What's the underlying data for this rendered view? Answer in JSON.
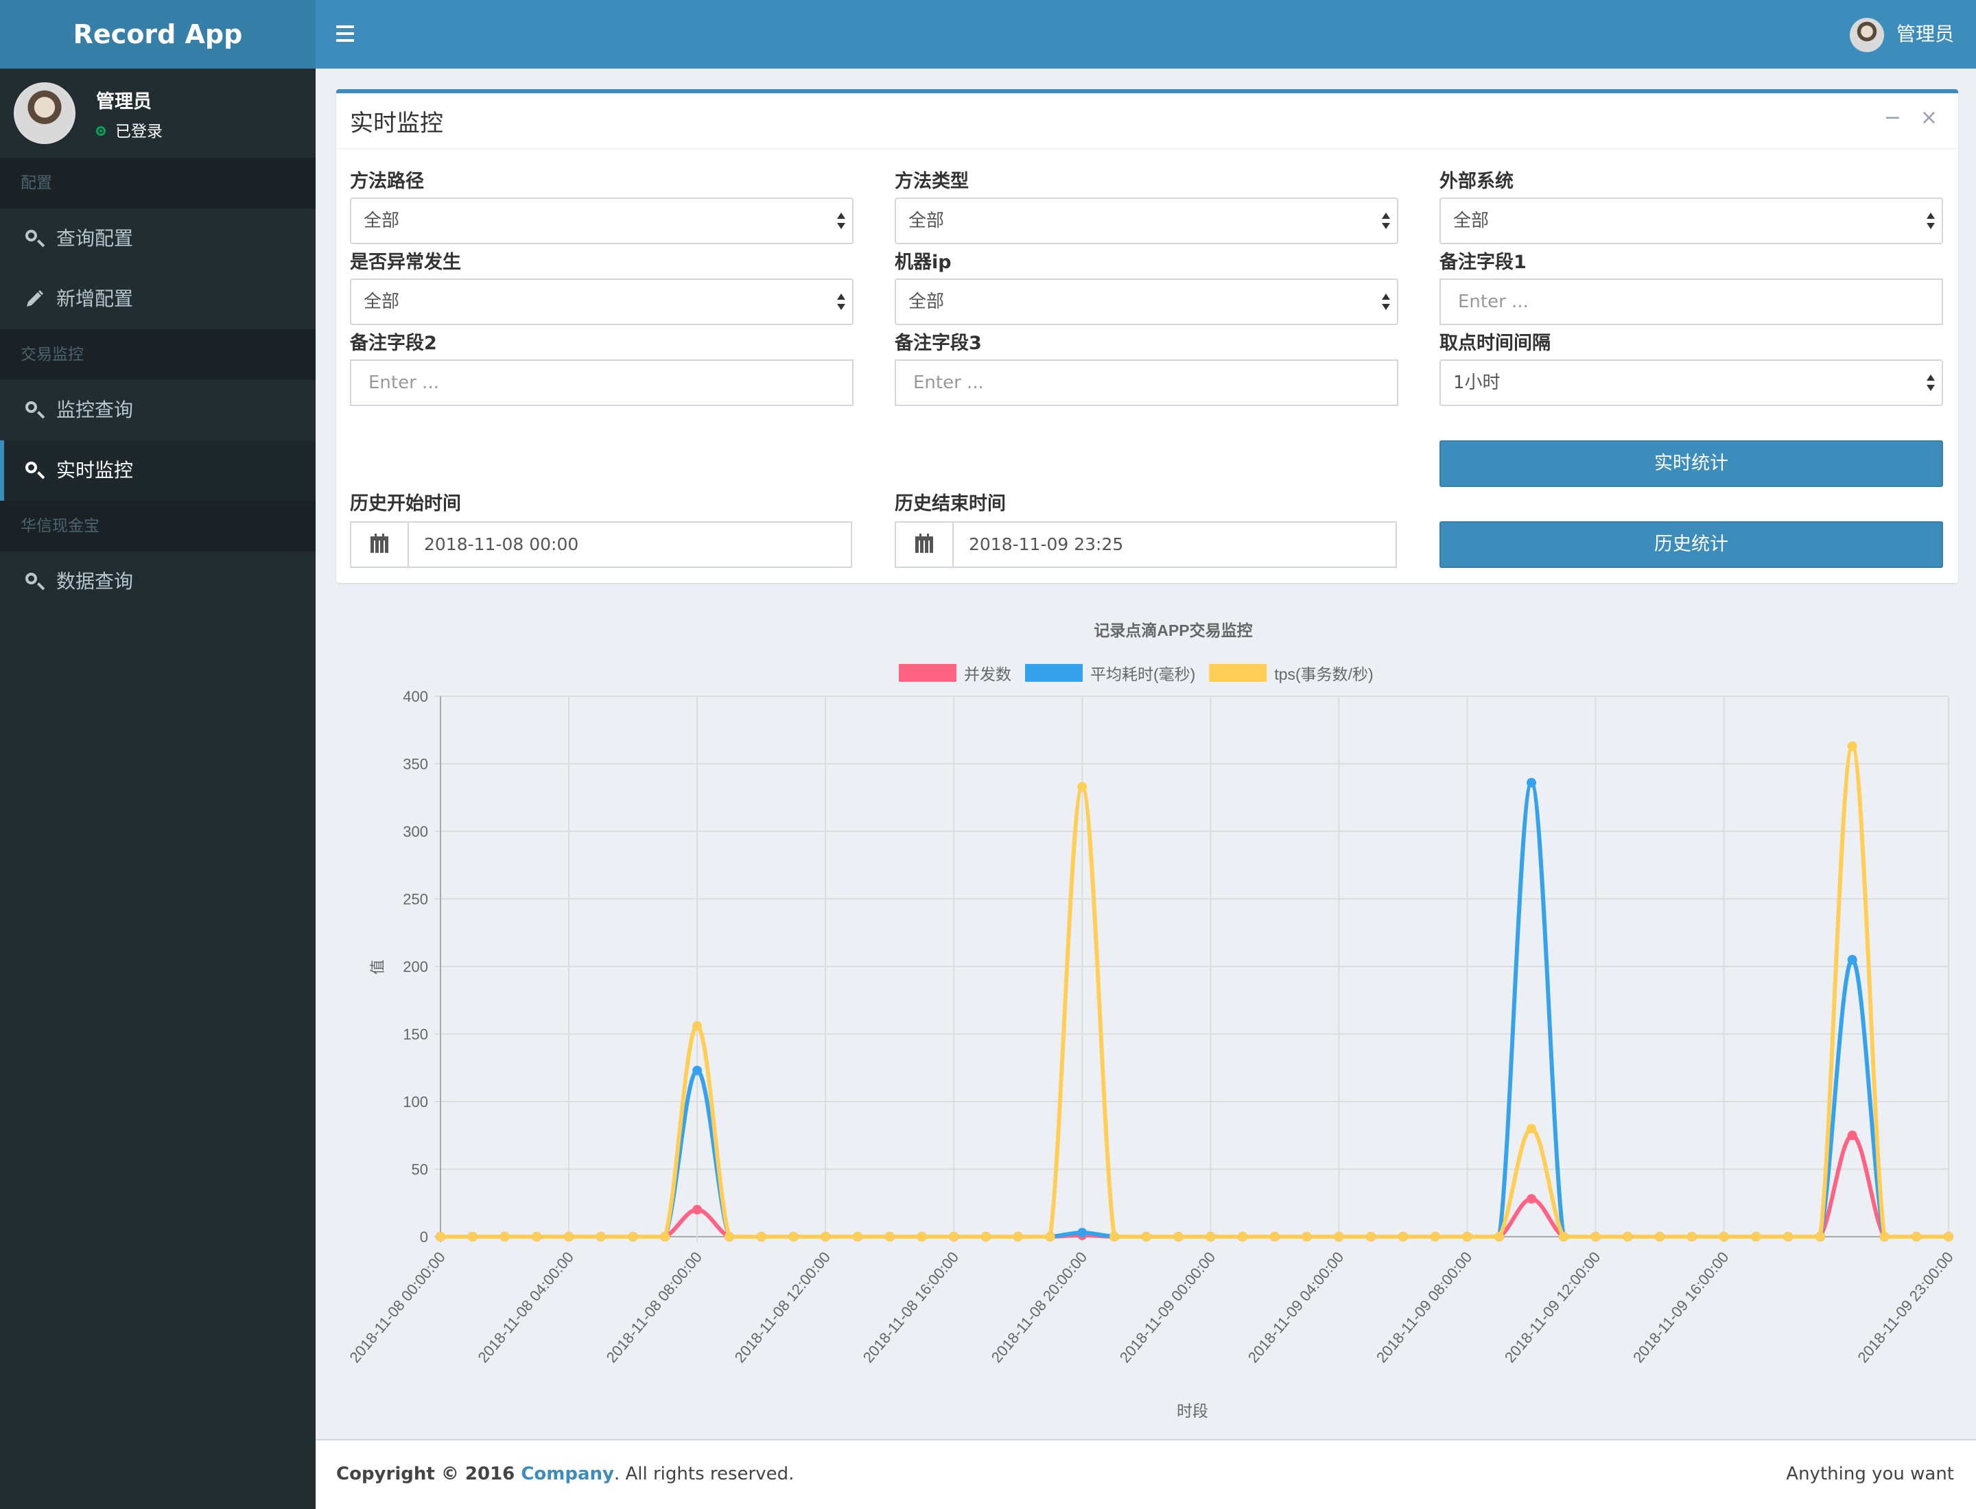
{
  "app": {
    "title": "Record App"
  },
  "user": {
    "name": "管理员",
    "status": "已登录"
  },
  "sidebar": {
    "sections": [
      {
        "header": "配置",
        "items": [
          {
            "label": "查询配置",
            "icon": "search-icon"
          },
          {
            "label": "新增配置",
            "icon": "pencil-icon"
          }
        ]
      },
      {
        "header": "交易监控",
        "items": [
          {
            "label": "监控查询",
            "icon": "search-icon"
          },
          {
            "label": "实时监控",
            "icon": "search-icon",
            "active": true
          }
        ]
      },
      {
        "header": "华信现金宝",
        "items": [
          {
            "label": "数据查询",
            "icon": "search-icon"
          }
        ]
      }
    ]
  },
  "navbar": {
    "user_name": "管理员"
  },
  "box": {
    "title": "实时监控",
    "fields": {
      "method_path": {
        "label": "方法路径",
        "value": "全部"
      },
      "method_type": {
        "label": "方法类型",
        "value": "全部"
      },
      "external_system": {
        "label": "外部系统",
        "value": "全部"
      },
      "exception": {
        "label": "是否异常发生",
        "value": "全部"
      },
      "machine_ip": {
        "label": "机器ip",
        "value": "全部"
      },
      "remark1": {
        "label": "备注字段1",
        "placeholder": "Enter ..."
      },
      "remark2": {
        "label": "备注字段2",
        "placeholder": "Enter ..."
      },
      "remark3": {
        "label": "备注字段3",
        "placeholder": "Enter ..."
      },
      "interval": {
        "label": "取点时间间隔",
        "value": "1小时"
      },
      "start_time": {
        "label": "历史开始时间",
        "value": "2018-11-08 00:00"
      },
      "end_time": {
        "label": "历史结束时间",
        "value": "2018-11-09 23:25"
      }
    },
    "buttons": {
      "realtime": "实时统计",
      "history": "历史统计"
    }
  },
  "chart_data": {
    "type": "line",
    "title": "记录点滴APP交易监控",
    "xlabel": "时段",
    "ylabel": "值",
    "ylim": [
      0,
      400
    ],
    "yticks": [
      0,
      50,
      100,
      150,
      200,
      250,
      300,
      350,
      400
    ],
    "x_tick_labels": [
      "2018-11-08 00:00:00",
      "2018-11-08 04:00:00",
      "2018-11-08 08:00:00",
      "2018-11-08 12:00:00",
      "2018-11-08 16:00:00",
      "2018-11-08 20:00:00",
      "2018-11-09 00:00:00",
      "2018-11-09 04:00:00",
      "2018-11-09 08:00:00",
      "2018-11-09 12:00:00",
      "2018-11-09 16:00:00",
      "2018-11-09 23:00:00"
    ],
    "grid": true,
    "legend": "top-center",
    "series": [
      {
        "name": "并发数",
        "color": "#ff6384",
        "values": [
          0,
          0,
          0,
          0,
          0,
          0,
          0,
          0,
          20,
          0,
          0,
          0,
          0,
          0,
          0,
          0,
          0,
          0,
          0,
          0,
          1,
          0,
          0,
          0,
          0,
          0,
          0,
          0,
          0,
          0,
          0,
          0,
          0,
          0,
          28,
          0,
          0,
          0,
          0,
          0,
          0,
          0,
          0,
          0,
          75,
          0,
          0,
          0
        ]
      },
      {
        "name": "平均耗时(毫秒)",
        "color": "#36a2eb",
        "values": [
          0,
          0,
          0,
          0,
          0,
          0,
          0,
          0,
          123,
          0,
          0,
          0,
          0,
          0,
          0,
          0,
          0,
          0,
          0,
          0,
          3,
          0,
          0,
          0,
          0,
          0,
          0,
          0,
          0,
          0,
          0,
          0,
          0,
          0,
          336,
          0,
          0,
          0,
          0,
          0,
          0,
          0,
          0,
          0,
          205,
          0,
          0,
          0
        ]
      },
      {
        "name": "tps(事务数/秒)",
        "color": "#ffce56",
        "values": [
          0,
          0,
          0,
          0,
          0,
          0,
          0,
          0,
          156,
          0,
          0,
          0,
          0,
          0,
          0,
          0,
          0,
          0,
          0,
          0,
          333,
          0,
          0,
          0,
          0,
          0,
          0,
          0,
          0,
          0,
          0,
          0,
          0,
          0,
          80,
          0,
          0,
          0,
          0,
          0,
          0,
          0,
          0,
          0,
          363,
          0,
          0,
          0
        ]
      }
    ]
  },
  "footer": {
    "copyright_prefix": "Copyright © 2016 ",
    "company": "Company",
    "suffix": ". All rights reserved.",
    "right": "Anything you want"
  }
}
